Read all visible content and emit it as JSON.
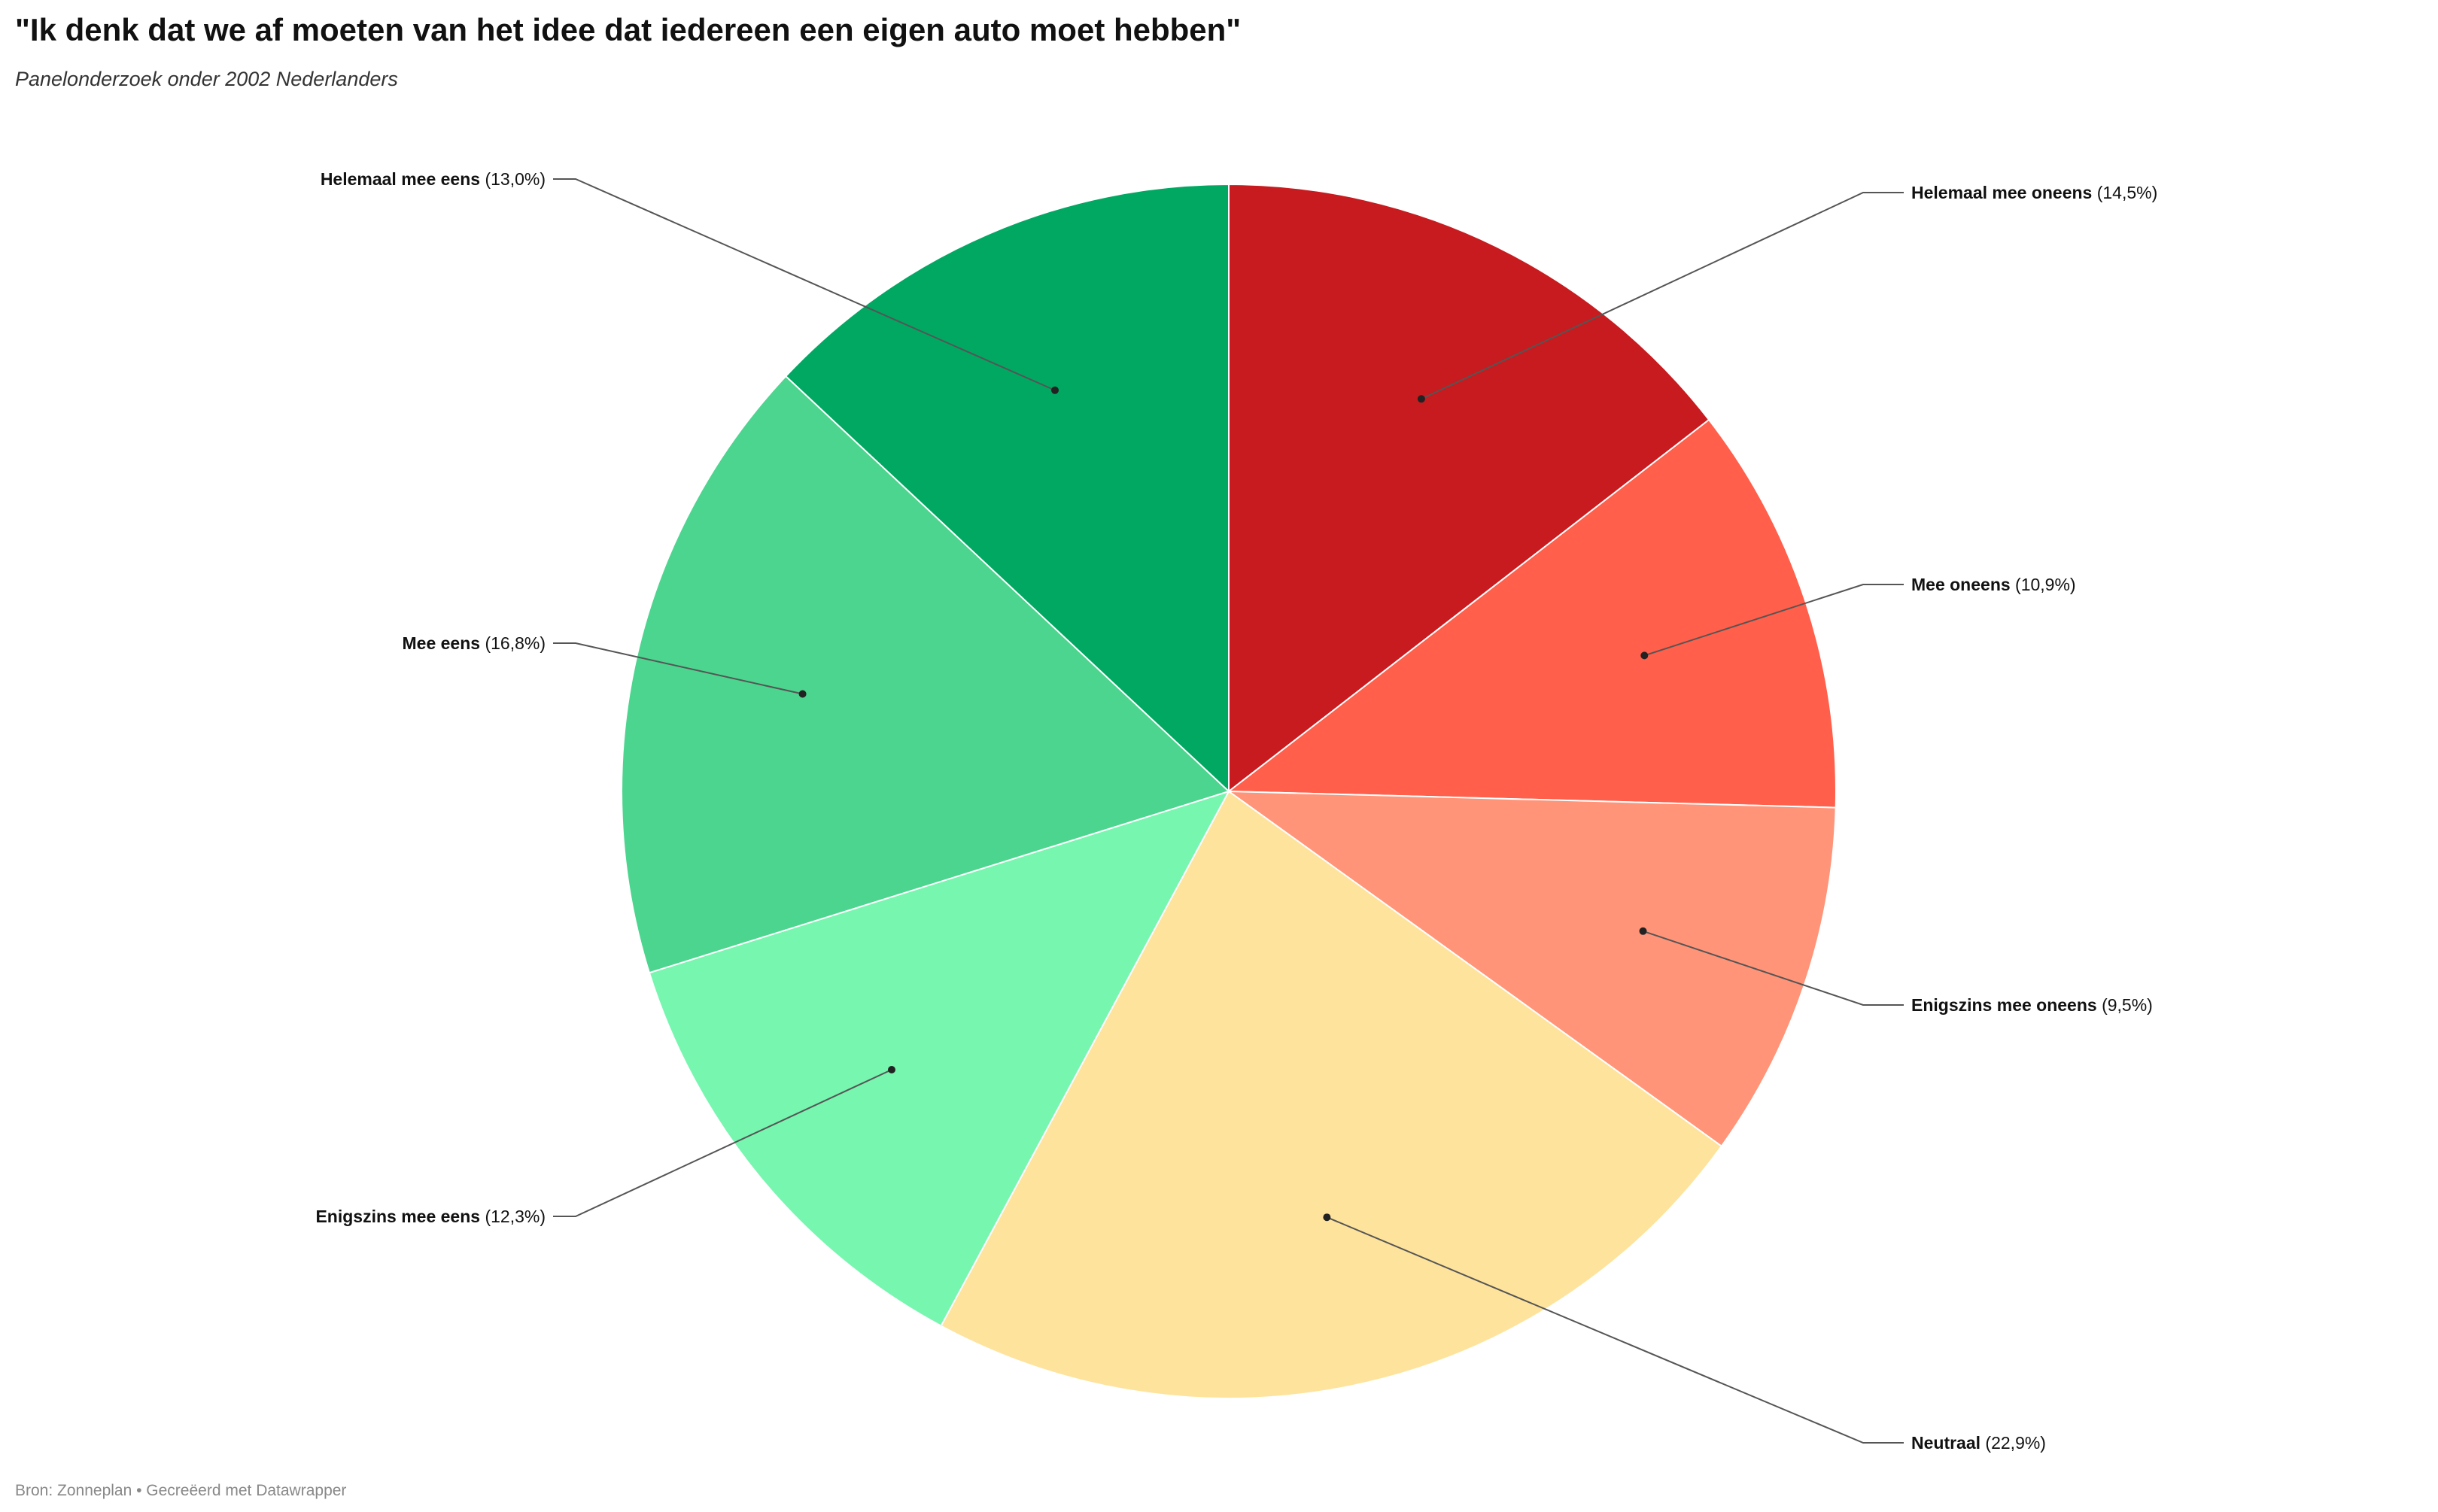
{
  "header": {
    "title": "\"Ik denk dat we af moeten van het idee dat iedereen een eigen auto moet hebben\"",
    "subtitle": "Panelonderzoek onder 2002 Nederlanders"
  },
  "footer": {
    "source": "Bron: Zonneplan • Gecreëerd met Datawrapper"
  },
  "chart_data": {
    "type": "pie",
    "title": "\"Ik denk dat we af moeten van het idee dat iedereen een eigen auto moet hebben\"",
    "subtitle": "Panelonderzoek onder 2002 Nederlanders",
    "slices": [
      {
        "label": "Helemaal mee oneens",
        "value": 14.5,
        "display": "(14,5%)",
        "color": "#c71b1f"
      },
      {
        "label": "Mee oneens",
        "value": 10.9,
        "display": "(10,9%)",
        "color": "#ff5f4b"
      },
      {
        "label": "Enigszins mee oneens",
        "value": 9.5,
        "display": "(9,5%)",
        "color": "#ff9479"
      },
      {
        "label": "Neutraal",
        "value": 22.9,
        "display": "(22,9%)",
        "color": "#fee39d"
      },
      {
        "label": "Enigszins mee eens",
        "value": 12.3,
        "display": "(12,3%)",
        "color": "#77f6b0"
      },
      {
        "label": "Mee eens",
        "value": 16.8,
        "display": "(16,8%)",
        "color": "#4cd58e"
      },
      {
        "label": "Helemaal mee eens",
        "value": 13.0,
        "display": "(13,0%)",
        "color": "#00a862"
      }
    ],
    "start_angle": "12 o'clock",
    "direction": "clockwise"
  }
}
